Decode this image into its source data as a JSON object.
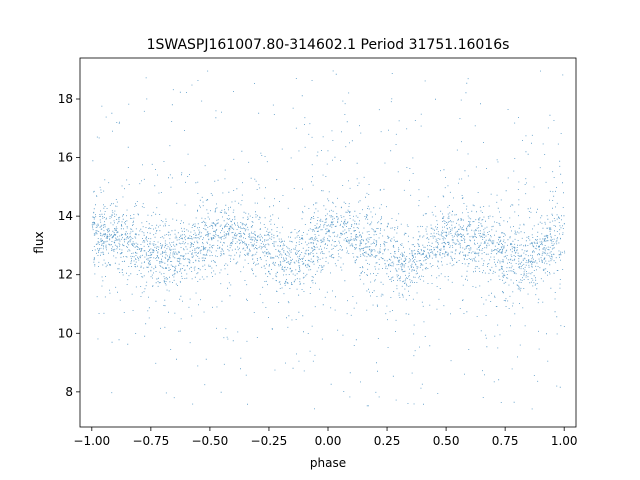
{
  "chart_data": {
    "type": "scatter",
    "title": "1SWASPJ161007.80-314602.1 Period 31751.16016s",
    "xlabel": "phase",
    "ylabel": "flux",
    "xlim": [
      -1.05,
      1.05
    ],
    "ylim": [
      6.8,
      19.4
    ],
    "x_ticks": [
      -1.0,
      -0.75,
      -0.5,
      -0.25,
      0.0,
      0.25,
      0.5,
      0.75,
      1.0
    ],
    "x_tick_labels": [
      "−1.00",
      "−0.75",
      "−0.50",
      "−0.25",
      "0.00",
      "0.25",
      "0.50",
      "0.75",
      "1.00"
    ],
    "y_ticks": [
      8,
      10,
      12,
      14,
      16,
      18
    ],
    "y_tick_labels": [
      "8",
      "10",
      "12",
      "14",
      "16",
      "18"
    ],
    "grid": false,
    "marker_color": "#1f77b4",
    "marker": "small dots",
    "series": [
      {
        "phase_profile": {
          "phase": [
            -1.0,
            -0.9,
            -0.8,
            -0.7,
            -0.6,
            -0.5,
            -0.4,
            -0.3,
            -0.2,
            -0.15,
            -0.1,
            0.0,
            0.05,
            0.1,
            0.2,
            0.3,
            0.35,
            0.4,
            0.5,
            0.6,
            0.7,
            0.8,
            0.85,
            0.9,
            1.0
          ],
          "median_flux": [
            13.3,
            13.4,
            13.0,
            12.6,
            12.8,
            13.2,
            13.4,
            13.1,
            12.6,
            12.4,
            12.8,
            13.4,
            13.5,
            13.3,
            12.9,
            12.5,
            12.45,
            12.8,
            13.3,
            13.2,
            12.9,
            12.5,
            12.45,
            12.8,
            13.3
          ]
        },
        "point_count": 22000,
        "core_spread": 0.55,
        "outlier_range": [
          7.4,
          19.0
        ]
      }
    ]
  }
}
